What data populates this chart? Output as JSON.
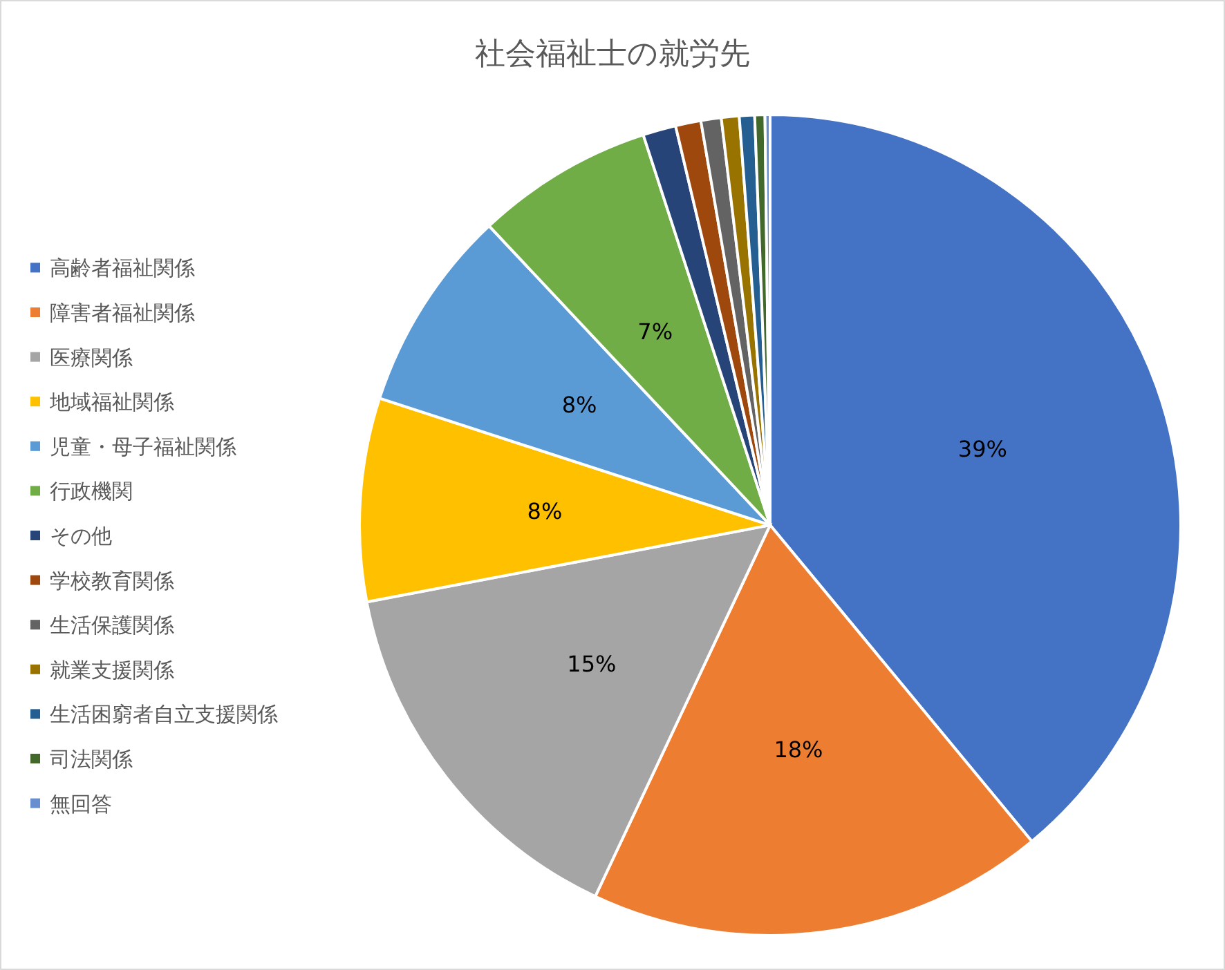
{
  "chart_data": {
    "type": "pie",
    "title": "社会福祉士の就労先",
    "categories": [
      "高齢者福祉関係",
      "障害者福祉関係",
      "医療関係",
      "地域福祉関係",
      "児童・母子福祉関係",
      "行政機関",
      "その他",
      "学校教育関係",
      "生活保護関係",
      "就業支援関係",
      "生活困窮者自立支援関係",
      "司法関係",
      "無回答"
    ],
    "values": [
      39,
      18,
      15,
      8,
      8,
      7,
      1.3,
      1.0,
      0.8,
      0.7,
      0.6,
      0.4,
      0.2
    ],
    "colors": [
      "#4472c4",
      "#ed7d31",
      "#a5a5a5",
      "#ffc000",
      "#5b9bd5",
      "#70ad47",
      "#264478",
      "#9e480e",
      "#636363",
      "#997300",
      "#255e91",
      "#43682b",
      "#698ed0"
    ],
    "value_labels": [
      "39%",
      "18%",
      "15%",
      "8%",
      "8%",
      "7%",
      null,
      null,
      null,
      null,
      null,
      null,
      null
    ],
    "legend": "left"
  }
}
